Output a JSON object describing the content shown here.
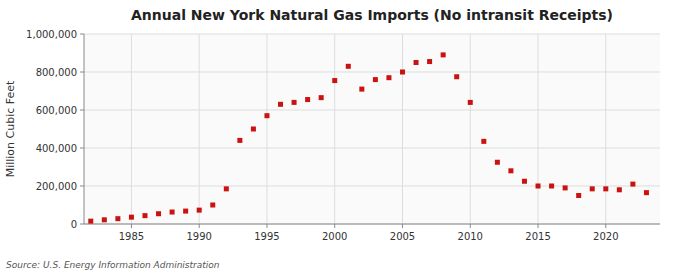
{
  "chart_data": {
    "type": "scatter",
    "title": "Annual New York Natural Gas Imports (No intransit Receipts)",
    "ylabel": "Million Cubic Feet",
    "source": "Source: U.S. Energy Information Administration",
    "color": "#cc1111",
    "marker": "square",
    "grid": true,
    "x": [
      1982,
      1983,
      1984,
      1985,
      1986,
      1987,
      1988,
      1989,
      1990,
      1991,
      1992,
      1993,
      1994,
      1995,
      1996,
      1997,
      1998,
      1999,
      2000,
      2001,
      2002,
      2003,
      2004,
      2005,
      2006,
      2007,
      2008,
      2009,
      2010,
      2011,
      2012,
      2013,
      2014,
      2015,
      2016,
      2017,
      2018,
      2019,
      2020,
      2021,
      2022,
      2023
    ],
    "values": [
      15000,
      22000,
      28000,
      36000,
      44000,
      54000,
      63000,
      68000,
      73000,
      100000,
      185000,
      440000,
      500000,
      570000,
      630000,
      640000,
      655000,
      665000,
      755000,
      830000,
      710000,
      760000,
      770000,
      800000,
      850000,
      855000,
      890000,
      775000,
      640000,
      435000,
      325000,
      280000,
      225000,
      200000,
      200000,
      190000,
      150000,
      185000,
      185000,
      180000,
      210000,
      165000
    ],
    "xlim": [
      1981.5,
      2024
    ],
    "ylim": [
      0,
      1000000
    ],
    "xticks": [
      1985,
      1990,
      1995,
      2000,
      2005,
      2010,
      2015,
      2020
    ],
    "yticks": [
      0,
      {
        "value": 200000,
        "label": "200,000"
      },
      {
        "value": 400000,
        "label": "400,000"
      },
      {
        "value": 600000,
        "label": "600,000"
      },
      {
        "value": 800000,
        "label": "800,000"
      },
      {
        "value": 1000000,
        "label": "1,000,000"
      }
    ]
  }
}
